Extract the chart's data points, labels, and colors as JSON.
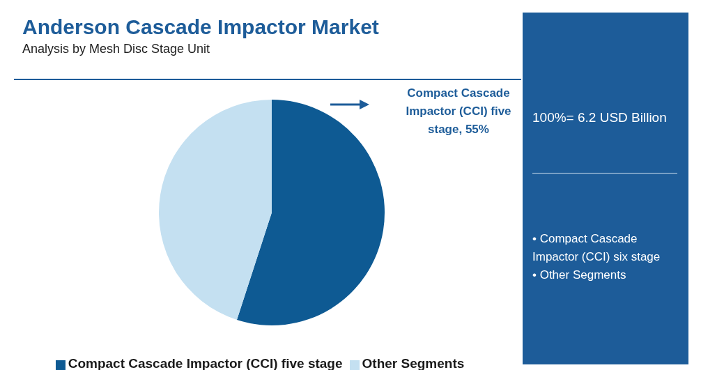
{
  "chart_data": {
    "type": "pie",
    "title": "Anderson Cascade Impactor Market",
    "subtitle": "Analysis by Mesh Disc Stage Unit",
    "categories": [
      "Compact Cascade Impactor (CCI) five stage",
      "Other Segments"
    ],
    "values": [
      55,
      45
    ],
    "colors": [
      "#0e5a93",
      "#c4e0f1"
    ],
    "legend": "bottom",
    "annotations": [
      "Compact Cascade Impactor (CCI) five stage, 55%",
      "100%= 6.2 USD Billion",
      "• Compact Cascade Impactor (CCI) six stage",
      "• Other Segments"
    ]
  }
}
